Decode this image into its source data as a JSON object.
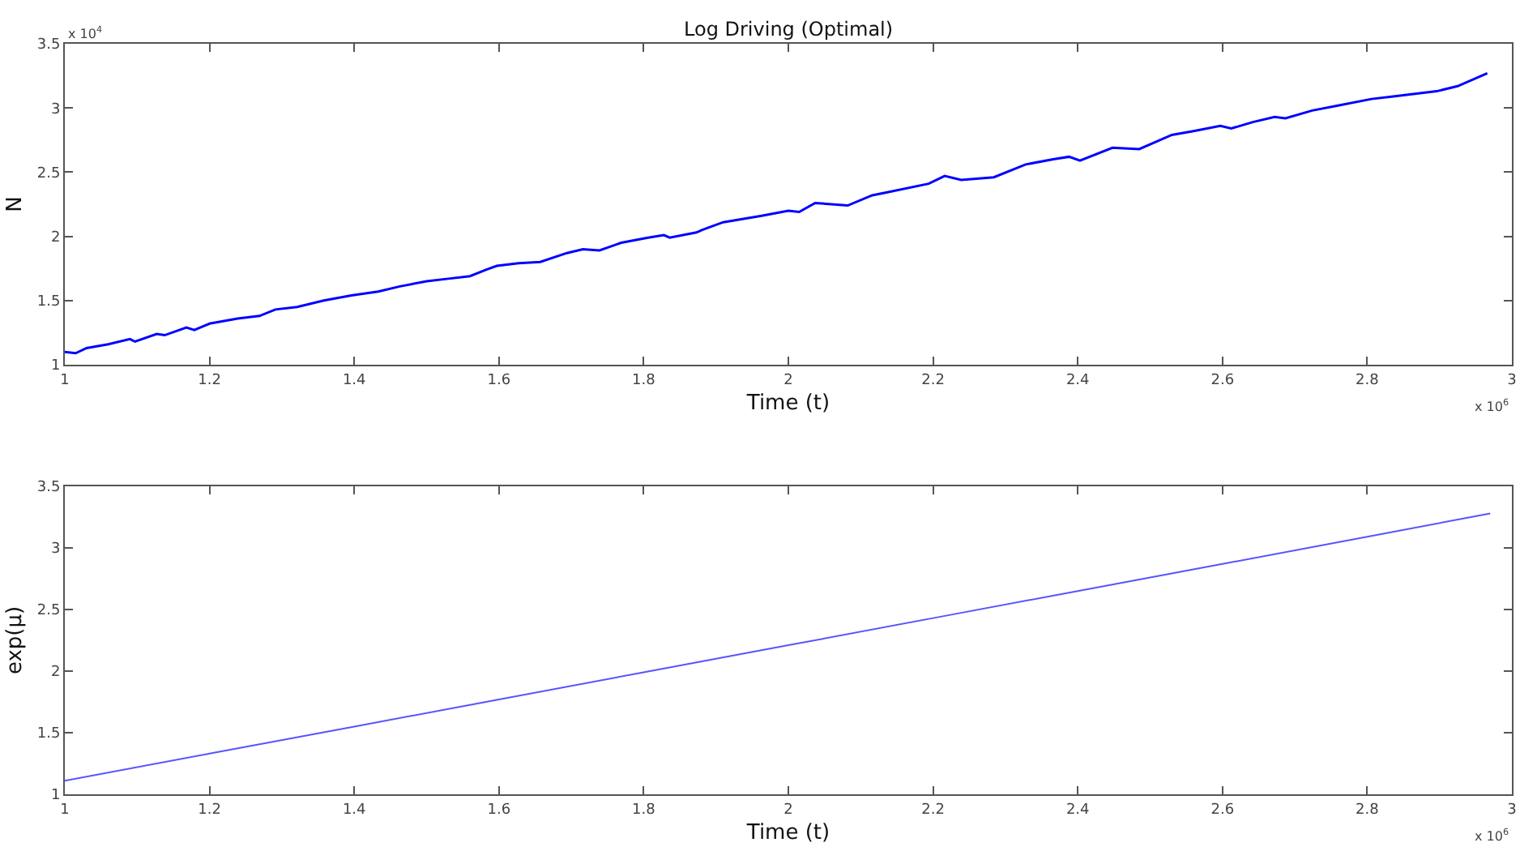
{
  "chart_data": [
    {
      "type": "line",
      "title": "Log Driving (Optimal)",
      "xlabel": "Time (t)",
      "ylabel": "N",
      "annotations": [
        "x 10$^{4}$",
        "x 10$^{6}$"
      ],
      "xlim": [
        1,
        3
      ],
      "xticks": [
        1,
        1.2,
        1.4,
        1.6,
        1.8,
        2,
        2.2,
        2.4,
        2.6,
        2.8,
        3
      ],
      "ylim": [
        1,
        3.5
      ],
      "yticks": [
        1,
        1.5,
        2,
        2.5,
        3,
        3.5
      ],
      "line_style": "solid",
      "series": [
        {
          "color": "#0000ff",
          "x": [
            1,
            1.015,
            1.03,
            1.06,
            1.09,
            1.097,
            1.127,
            1.138,
            1.168,
            1.179,
            1.2,
            1.239,
            1.269,
            1.291,
            1.321,
            1.358,
            1.396,
            1.433,
            1.463,
            1.5,
            1.53,
            1.56,
            1.582,
            1.597,
            1.627,
            1.657,
            1.694,
            1.716,
            1.739,
            1.769,
            1.806,
            1.828,
            1.836,
            1.873,
            1.881,
            1.91,
            1.963,
            2.0,
            2.015,
            2.037,
            2.082,
            2.116,
            2.134,
            2.194,
            2.216,
            2.239,
            2.284,
            2.328,
            2.366,
            2.388,
            2.403,
            2.448,
            2.485,
            2.53,
            2.56,
            2.597,
            2.612,
            2.642,
            2.672,
            2.687,
            2.724,
            2.761,
            2.806,
            2.836,
            2.866,
            2.896,
            2.925,
            2.966
          ],
          "values": [
            1.1,
            1.09,
            1.13,
            1.16,
            1.2,
            1.18,
            1.24,
            1.23,
            1.29,
            1.27,
            1.32,
            1.36,
            1.38,
            1.43,
            1.45,
            1.5,
            1.54,
            1.57,
            1.61,
            1.65,
            1.67,
            1.69,
            1.74,
            1.77,
            1.79,
            1.8,
            1.87,
            1.9,
            1.89,
            1.95,
            1.99,
            2.01,
            1.99,
            2.03,
            2.05,
            2.11,
            2.16,
            2.2,
            2.19,
            2.26,
            2.24,
            2.32,
            2.34,
            2.41,
            2.47,
            2.44,
            2.46,
            2.56,
            2.6,
            2.62,
            2.59,
            2.69,
            2.68,
            2.79,
            2.82,
            2.86,
            2.84,
            2.89,
            2.93,
            2.92,
            2.98,
            3.02,
            3.07,
            3.09,
            3.11,
            3.13,
            3.17,
            3.27
          ]
        }
      ]
    },
    {
      "type": "line",
      "xlabel": "Time (t)",
      "ylabel": "exp(μ)",
      "annotations": [
        "x 10$^{6}$"
      ],
      "xlim": [
        1,
        3
      ],
      "xticks": [
        1,
        1.2,
        1.4,
        1.6,
        1.8,
        2,
        2.2,
        2.4,
        2.6,
        2.8,
        3
      ],
      "ylim": [
        1,
        3.5
      ],
      "yticks": [
        1,
        1.5,
        2,
        2.5,
        3,
        3.5
      ],
      "line_style": "solid",
      "series": [
        {
          "color": "#5555ff",
          "x": [
            1,
            1.2,
            1.4,
            1.6,
            1.8,
            2,
            2.2,
            2.4,
            2.6,
            2.8,
            2.97
          ],
          "values": [
            1.11,
            1.33,
            1.55,
            1.77,
            1.99,
            2.21,
            2.43,
            2.65,
            2.87,
            3.09,
            3.28
          ]
        }
      ]
    }
  ]
}
